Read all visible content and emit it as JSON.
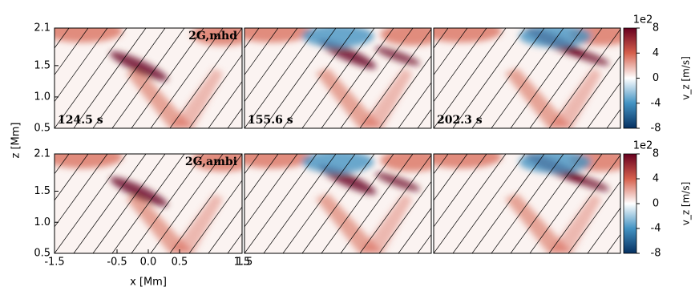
{
  "chart_data": {
    "type": "heatmap",
    "xlabel": "x [Mm]",
    "ylabel": "z [Mm]",
    "xlim": [
      -1.5,
      1.5
    ],
    "xticks": [
      -1.5,
      -0.5,
      {
        "value": 0,
        "label": "0.0"
      },
      0.5,
      1.5
    ],
    "ylim": [
      0.5,
      2.1
    ],
    "yticks": [
      0.5,
      {
        "value": 1,
        "label": "1.0"
      },
      1.5,
      2.1
    ],
    "colorbar": {
      "label": "v_z [m/s]",
      "offset": "1e2",
      "clim": [
        -8,
        8
      ],
      "ticks": [
        8,
        4,
        0,
        -4,
        -8
      ],
      "colors": [
        "#67001f",
        "#d6604d",
        "#ffffff",
        "#4393c3",
        "#053061"
      ]
    },
    "panels": [
      {
        "label": "2G,mhd",
        "time": "124.5 s"
      },
      {
        "time": "155.6 s"
      },
      {
        "time": "202.3 s"
      },
      {
        "label": "2G,ambi"
      },
      {
        "xlim": [
          1.5,
          4.5
        ],
        "xticks": [
          1.5
        ]
      },
      {}
    ]
  }
}
